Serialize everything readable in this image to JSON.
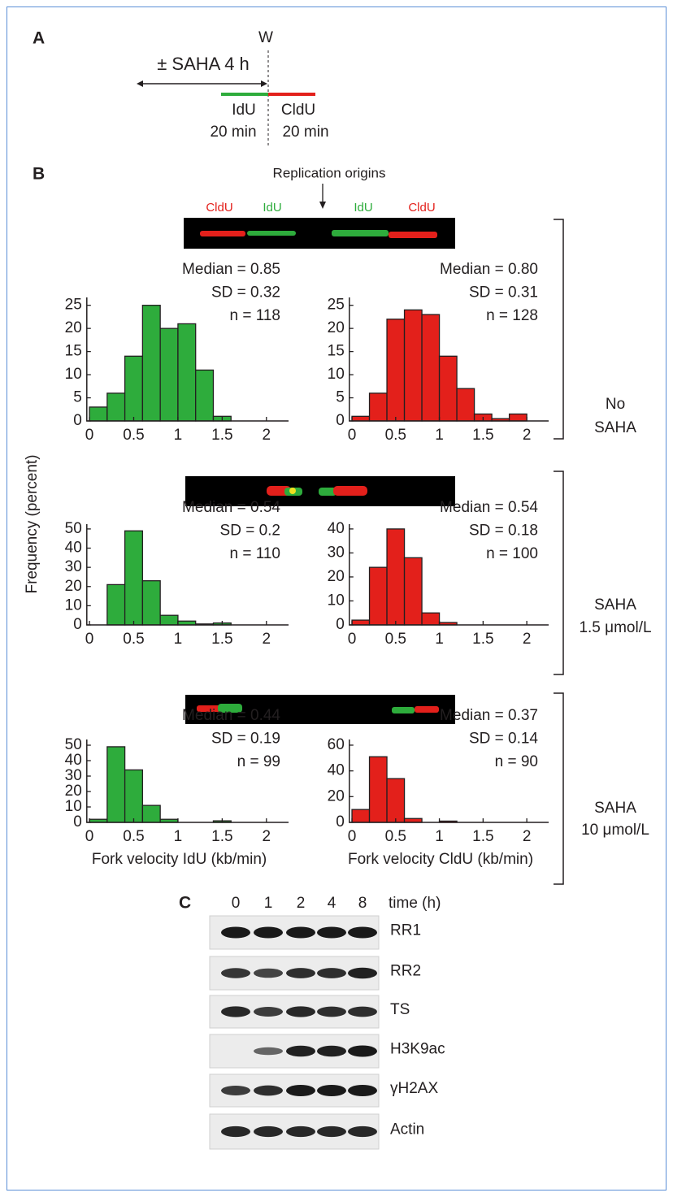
{
  "panel_a": {
    "label": "A",
    "wash": "W",
    "treatment": "± SAHA 4 h",
    "pulse1": "IdU",
    "pulse1_time": "20 min",
    "pulse2": "CldU",
    "pulse2_time": "20 min"
  },
  "panel_b": {
    "label": "B",
    "origins": "Replication origins",
    "fiber_labels": [
      "CldU",
      "IdU",
      "IdU",
      "CldU"
    ],
    "ylabel": "Frequency (percent)",
    "rows": [
      [
        "No",
        "SAHA"
      ],
      [
        "SAHA",
        "1.5 μmol/L"
      ],
      [
        "SAHA",
        "10 μmol/L"
      ]
    ]
  },
  "chart_data": [
    {
      "type": "histogram",
      "bins": [
        0,
        0.2,
        0.4,
        0.6,
        0.8,
        1.0,
        1.2,
        1.4,
        1.6,
        1.8,
        2.0,
        2.2
      ],
      "values": [
        3,
        6,
        14,
        25,
        20,
        21,
        11,
        1,
        0,
        0,
        0
      ],
      "color": "#2eac3c",
      "xlim": [
        -0.03,
        2.25
      ],
      "ylim": [
        0,
        26.7
      ],
      "xticks": [
        0,
        0.5,
        1,
        1.5,
        2
      ],
      "yticks": [
        0,
        5,
        10,
        15,
        20,
        25
      ],
      "annotations": [
        "Median = 0.85",
        "SD = 0.32",
        "n = 118"
      ]
    },
    {
      "type": "histogram",
      "bins": [
        0,
        0.2,
        0.4,
        0.6,
        0.8,
        1.0,
        1.2,
        1.4,
        1.6,
        1.8,
        2.0,
        2.2
      ],
      "values": [
        1,
        6,
        22,
        24,
        23,
        14,
        7,
        1.5,
        0.5,
        1.5,
        0
      ],
      "color": "#e3201b",
      "xlim": [
        -0.03,
        2.25
      ],
      "ylim": [
        0,
        26.7
      ],
      "xticks": [
        0,
        0.5,
        1,
        1.5,
        2
      ],
      "yticks": [
        0,
        5,
        10,
        15,
        20,
        25
      ],
      "annotations": [
        "Median = 0.80",
        "SD = 0.31",
        "n = 128"
      ]
    },
    {
      "type": "histogram",
      "bins": [
        0,
        0.2,
        0.4,
        0.6,
        0.8,
        1.0,
        1.2,
        1.4,
        1.6,
        1.8,
        2.0,
        2.2
      ],
      "values": [
        0,
        21,
        49,
        23,
        5,
        2,
        0.5,
        1,
        0,
        0,
        0
      ],
      "color": "#2eac3c",
      "xlim": [
        -0.03,
        2.25
      ],
      "ylim": [
        0,
        52.5
      ],
      "xticks": [
        0,
        0.5,
        1,
        1.5,
        2
      ],
      "yticks": [
        0,
        10,
        20,
        30,
        40,
        50
      ],
      "annotations": [
        "Median = 0.54",
        "SD = 0.2",
        "n = 110"
      ]
    },
    {
      "type": "histogram",
      "bins": [
        0,
        0.2,
        0.4,
        0.6,
        0.8,
        1.0,
        1.2,
        1.4,
        1.6,
        1.8,
        2.0,
        2.2
      ],
      "values": [
        2,
        24,
        40,
        28,
        5,
        1,
        0,
        0,
        0,
        0,
        0
      ],
      "color": "#e3201b",
      "xlim": [
        -0.03,
        2.25
      ],
      "ylim": [
        0,
        42
      ],
      "xticks": [
        0,
        0.5,
        1,
        1.5,
        2
      ],
      "yticks": [
        0,
        10,
        20,
        30,
        40
      ],
      "annotations": [
        "Median = 0.54",
        "SD = 0.18",
        "n = 100"
      ]
    },
    {
      "type": "histogram",
      "bins": [
        0,
        0.2,
        0.4,
        0.6,
        0.8,
        1.0,
        1.2,
        1.4,
        1.6,
        1.8,
        2.0,
        2.2
      ],
      "values": [
        2,
        49,
        34,
        11,
        2,
        0,
        0,
        1,
        0,
        0,
        0
      ],
      "color": "#2eac3c",
      "xlim": [
        -0.03,
        2.25
      ],
      "ylim": [
        0,
        53.7
      ],
      "xticks": [
        0,
        0.5,
        1,
        1.5,
        2
      ],
      "yticks": [
        0,
        10,
        20,
        30,
        40,
        50
      ],
      "annotations": [
        "Median = 0.44",
        "SD =  0.19",
        "n = 99"
      ],
      "xlabel": "Fork velocity IdU (kb/min)"
    },
    {
      "type": "histogram",
      "bins": [
        0,
        0.2,
        0.4,
        0.6,
        0.8,
        1.0,
        1.2,
        1.4,
        1.6,
        1.8,
        2.0,
        2.2
      ],
      "values": [
        10,
        51,
        34,
        3,
        0,
        1,
        0,
        0,
        0,
        0,
        0
      ],
      "color": "#e3201b",
      "xlim": [
        -0.03,
        2.25
      ],
      "ylim": [
        0,
        64.4
      ],
      "xticks": [
        0,
        0.5,
        1,
        1.5,
        2
      ],
      "yticks": [
        0,
        20,
        40,
        60
      ],
      "annotations": [
        "Median = 0.37",
        "SD = 0.14",
        "n = 90"
      ],
      "xlabel": "Fork velocity CldU (kb/min)"
    }
  ],
  "panel_c": {
    "label": "C",
    "lanes": [
      "0",
      "1",
      "2",
      "4",
      "8"
    ],
    "lane_title": "time (h)",
    "proteins": [
      "RR1",
      "RR2",
      "TS",
      "H3K9ac",
      "γH2AX",
      "Actin"
    ]
  }
}
